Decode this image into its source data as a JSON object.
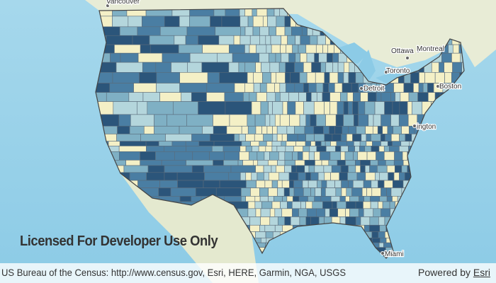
{
  "map": {
    "places": [
      {
        "label": "Vancouver"
      },
      {
        "label": "Ottawa"
      },
      {
        "label": "Montreal"
      },
      {
        "label": "Toronto"
      },
      {
        "label": "Detroit"
      },
      {
        "label": "Boston"
      },
      {
        "label": "ington"
      },
      {
        "label": "Miami"
      }
    ]
  },
  "watermark": "Licensed For Developer Use Only",
  "attribution": {
    "sources": "US Bureau of the Census: http://www.census.gov, Esri, HERE, Garmin, NGA, USGS",
    "powered_by": "Powered by",
    "esri_link": "Esri"
  }
}
